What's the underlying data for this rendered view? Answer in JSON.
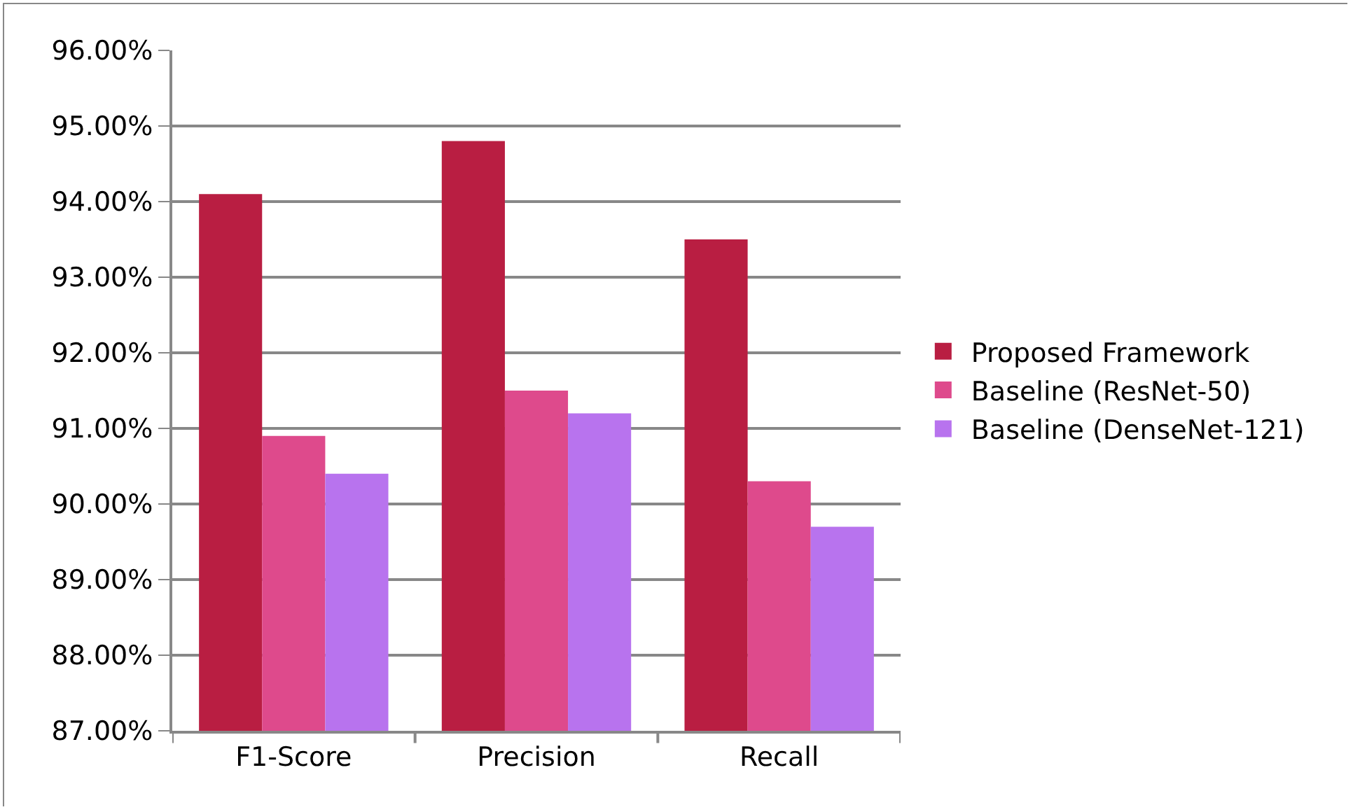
{
  "chart_data": {
    "type": "bar",
    "categories": [
      "F1-Score",
      "Precision",
      "Recall"
    ],
    "series": [
      {
        "name": "Proposed Framework",
        "color": "#b91e42",
        "values": [
          94.1,
          94.8,
          93.5
        ]
      },
      {
        "name": "Baseline (ResNet-50)",
        "color": "#de4a8c",
        "values": [
          90.9,
          91.5,
          90.3
        ]
      },
      {
        "name": "Baseline (DenseNet-121)",
        "color": "#b873ee",
        "values": [
          90.4,
          91.2,
          89.7
        ]
      }
    ],
    "ylim": [
      87,
      96
    ],
    "yticks": [
      {
        "value": 87,
        "label": "87.00%"
      },
      {
        "value": 88,
        "label": "88.00%"
      },
      {
        "value": 89,
        "label": "89.00%"
      },
      {
        "value": 90,
        "label": "90.00%"
      },
      {
        "value": 91,
        "label": "91.00%"
      },
      {
        "value": 92,
        "label": "92.00%"
      },
      {
        "value": 93,
        "label": "93.00%"
      },
      {
        "value": 94,
        "label": "94.00%"
      },
      {
        "value": 95,
        "label": "95.00%"
      },
      {
        "value": 96,
        "label": "96.00%"
      }
    ],
    "grid": "y",
    "legend": "right"
  }
}
